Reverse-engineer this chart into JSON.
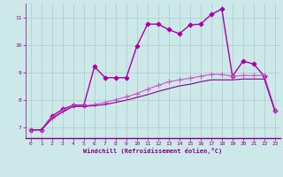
{
  "xlabel": "Windchill (Refroidissement éolien,°C)",
  "background_color": "#cce8e8",
  "grid_color": "#aacccc",
  "xlim": [
    -0.5,
    23.5
  ],
  "ylim": [
    6.6,
    11.5
  ],
  "yticks": [
    7,
    8,
    9,
    10,
    11
  ],
  "xticks": [
    0,
    1,
    2,
    3,
    4,
    5,
    6,
    7,
    8,
    9,
    10,
    11,
    12,
    13,
    14,
    15,
    16,
    17,
    18,
    19,
    20,
    21,
    22,
    23
  ],
  "series": [
    {
      "x": [
        0,
        1,
        2,
        3,
        4,
        5,
        6,
        7,
        8,
        9,
        10,
        11,
        12,
        13,
        14,
        15,
        16,
        17,
        18,
        19,
        20,
        21,
        22,
        23
      ],
      "y": [
        6.9,
        6.9,
        7.4,
        7.65,
        7.8,
        7.8,
        9.2,
        8.8,
        8.8,
        8.8,
        9.95,
        10.75,
        10.75,
        10.55,
        10.4,
        10.72,
        10.75,
        11.1,
        11.3,
        8.85,
        9.4,
        9.3,
        8.85,
        7.6
      ],
      "marker": "D",
      "markersize": 2.5,
      "linewidth": 1.0,
      "color": "#aa00aa"
    },
    {
      "x": [
        0,
        1,
        2,
        3,
        4,
        5,
        6,
        7,
        8,
        9,
        10,
        11,
        12,
        13,
        14,
        15,
        16,
        17,
        18,
        19,
        20,
        21,
        22,
        23
      ],
      "y": [
        6.9,
        6.9,
        7.35,
        7.6,
        7.78,
        7.78,
        7.82,
        7.9,
        8.0,
        8.1,
        8.22,
        8.38,
        8.52,
        8.65,
        8.72,
        8.78,
        8.85,
        8.92,
        8.92,
        8.85,
        8.88,
        8.88,
        8.88,
        7.6
      ],
      "marker": "+",
      "markersize": 4,
      "linewidth": 0.8,
      "color": "#cc55cc"
    },
    {
      "x": [
        0,
        1,
        2,
        3,
        4,
        5,
        6,
        7,
        8,
        9,
        10,
        11,
        12,
        13,
        14,
        15,
        16,
        17,
        18,
        19,
        20,
        21,
        22,
        23
      ],
      "y": [
        6.9,
        6.9,
        7.3,
        7.55,
        7.75,
        7.75,
        7.78,
        7.82,
        7.9,
        7.98,
        8.08,
        8.18,
        8.3,
        8.4,
        8.5,
        8.56,
        8.65,
        8.72,
        8.72,
        8.72,
        8.75,
        8.75,
        8.75,
        7.6
      ],
      "marker": null,
      "markersize": 0,
      "linewidth": 0.8,
      "color": "#880088"
    }
  ]
}
